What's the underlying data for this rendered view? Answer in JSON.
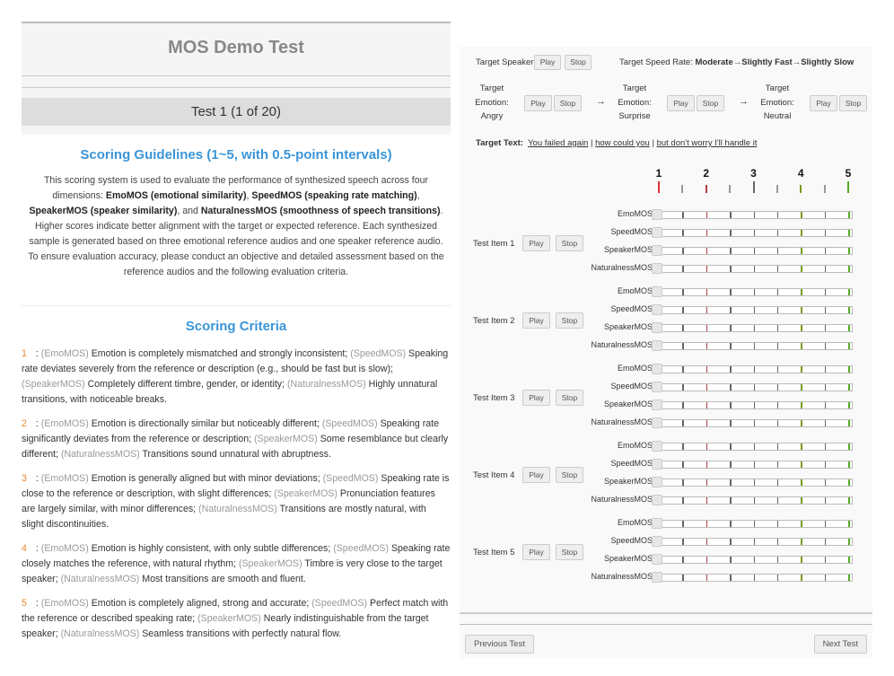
{
  "header": {
    "title": "MOS Demo Test",
    "test_label": "Test 1 (1 of 20)"
  },
  "guidelines": {
    "heading": "Scoring Guidelines (1~5, with 0.5-point intervals)",
    "p1": "This scoring system is used to evaluate the performance of synthesized speech across four dimensions: ",
    "b1": "EmoMOS (emotional similarity)",
    "s1": ", ",
    "b2": "SpeedMOS (speaking rate matching)",
    "s2": ", ",
    "b3": "SpeakerMOS (speaker similarity)",
    "s3": ", and ",
    "b4": "NaturalnessMOS (smoothness of speech transitions)",
    "p2": ". Higher scores indicate better alignment with the target or expected reference. Each synthesized sample is generated based on three emotional reference audios and one speaker reference audio. To ensure evaluation accuracy, please conduct an objective and detailed assessment based on the reference audios and the following evaluation criteria."
  },
  "criteria": {
    "heading": "Scoring Criteria",
    "items": [
      {
        "num": "1",
        "parts": [
          ": ",
          "(EmoMOS)",
          " Emotion is completely mismatched and strongly inconsistent; ",
          "(SpeedMOS)",
          " Speaking rate deviates severely from the reference or description (e.g., should be fast but is slow); ",
          "(SpeakerMOS)",
          " Completely different timbre, gender, or identity; ",
          "(NaturalnessMOS)",
          " Highly unnatural transitions, with noticeable breaks."
        ]
      },
      {
        "num": "2",
        "parts": [
          ": ",
          "(EmoMOS)",
          " Emotion is directionally similar but noticeably different; ",
          "(SpeedMOS)",
          " Speaking rate significantly deviates from the reference or description; ",
          "(SpeakerMOS)",
          " Some resemblance but clearly different; ",
          "(NaturalnessMOS)",
          " Transitions sound unnatural with abruptness."
        ]
      },
      {
        "num": "3",
        "parts": [
          ": ",
          "(EmoMOS)",
          " Emotion is generally aligned but with minor deviations; ",
          "(SpeedMOS)",
          " Speaking rate is close to the reference or description, with slight differences; ",
          "(SpeakerMOS)",
          " Pronunciation features are largely similar, with minor differences; ",
          "(NaturalnessMOS)",
          " Transitions are mostly natural, with slight discontinuities."
        ]
      },
      {
        "num": "4",
        "parts": [
          ": ",
          "(EmoMOS)",
          " Emotion is highly consistent, with only subtle differences; ",
          "(SpeedMOS)",
          " Speaking rate closely matches the reference, with natural rhythm; ",
          "(SpeakerMOS)",
          " Timbre is very close to the target speaker; ",
          "(NaturalnessMOS)",
          " Most transitions are smooth and fluent."
        ]
      },
      {
        "num": "5",
        "parts": [
          ": ",
          "(EmoMOS)",
          " Emotion is completely aligned, strong and accurate; ",
          "(SpeedMOS)",
          " Perfect match with the reference or described speaking rate; ",
          "(SpeakerMOS)",
          " Nearly indistinguishable from the target speaker; ",
          "(NaturalnessMOS)",
          " Seamless transitions with perfectly natural flow."
        ]
      }
    ]
  },
  "panel": {
    "speaker_label": "Target Speaker:",
    "play": "Play",
    "stop": "Stop",
    "speed_label": "Target Speed Rate: ",
    "speed_value": "Moderate→Slightly Fast→Slightly Slow",
    "emotions": [
      {
        "l1": "Target",
        "l2": "Emotion:",
        "l3": "Angry"
      },
      {
        "l1": "Target",
        "l2": "Emotion:",
        "l3": "Surprise"
      },
      {
        "l1": "Target",
        "l2": "Emotion:",
        "l3": "Neutral"
      }
    ],
    "arrow": "→",
    "text_label": "Target Text:",
    "text_segments": [
      "You failed again",
      "how could you",
      "but don't worry I'll handle it"
    ],
    "text_sep": "|",
    "scale": [
      "1",
      "2",
      "3",
      "4",
      "5"
    ],
    "scale_colors": {
      "1": "#e03030",
      "2": "#b04040",
      "3": "#666666",
      "4": "#7a9a20",
      "5": "#55aa22",
      "half": "#999999"
    },
    "dimensions": [
      "EmoMOS",
      "SpeedMOS",
      "SpeakerMOS",
      "NaturalnessMOS"
    ],
    "items": [
      "Test Item 1",
      "Test Item 2",
      "Test Item 3",
      "Test Item 4",
      "Test Item 5"
    ],
    "prev": "Previous Test",
    "next": "Next Test"
  }
}
